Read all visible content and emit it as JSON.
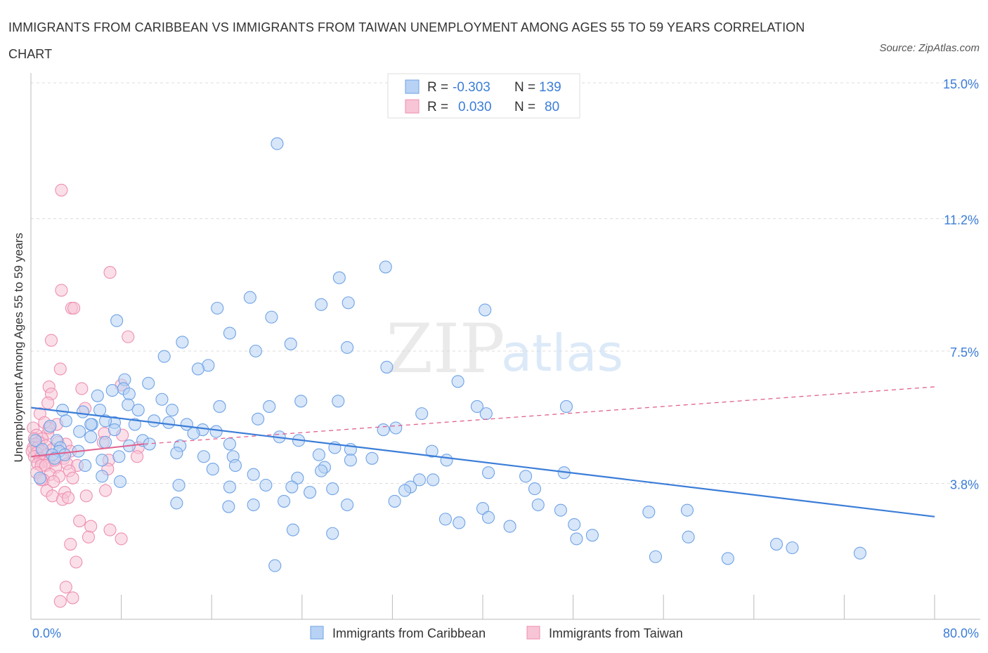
{
  "title": "IMMIGRANTS FROM CARIBBEAN VS IMMIGRANTS FROM TAIWAN UNEMPLOYMENT AMONG AGES 55 TO 59 YEARS CORRELATION CHART",
  "source": "Source: ZipAtlas.com",
  "watermark": {
    "zip": "ZIP",
    "atlas": "atlas"
  },
  "legend_box": {
    "rows": [
      {
        "r_label": "R =",
        "r_value": "-0.303",
        "n_label": "N =",
        "n_value": "139",
        "color": "#a9c8f2"
      },
      {
        "r_label": "R =",
        "r_value": "0.030",
        "n_label": "N =",
        "n_value": "80",
        "color": "#f5b8cd"
      }
    ]
  },
  "chart_data": {
    "type": "scatter",
    "xlabel": "",
    "ylabel": "Unemployment Among Ages 55 to 59 years",
    "x_ticks": [
      "0.0%",
      "80.0%"
    ],
    "y_ticks": [
      "3.8%",
      "7.5%",
      "11.2%",
      "15.0%"
    ],
    "xlim": [
      0,
      80
    ],
    "ylim": [
      0,
      15
    ],
    "grid": true,
    "legend_position": "bottom-center",
    "series": [
      {
        "name": "Immigrants from Caribbean",
        "color": "#6fa3e6",
        "fill": "#b7d2f4",
        "trend_color": "#3b7dd8",
        "trend": {
          "x0": 0,
          "y0": 5.92,
          "x1": 80,
          "y1": 2.87
        },
        "points": [
          [
            21.8,
            13.3
          ],
          [
            31.4,
            9.85
          ],
          [
            27.3,
            9.55
          ],
          [
            19.4,
            9.0
          ],
          [
            28.1,
            8.85
          ],
          [
            25.7,
            8.8
          ],
          [
            16.5,
            8.7
          ],
          [
            40.2,
            8.65
          ],
          [
            21.3,
            8.45
          ],
          [
            7.6,
            8.35
          ],
          [
            17.6,
            8.0
          ],
          [
            13.4,
            7.75
          ],
          [
            23.0,
            7.7
          ],
          [
            28.0,
            7.6
          ],
          [
            19.9,
            7.5
          ],
          [
            11.8,
            7.35
          ],
          [
            15.7,
            7.1
          ],
          [
            14.8,
            7.0
          ],
          [
            31.5,
            7.05
          ],
          [
            37.8,
            6.65
          ],
          [
            8.3,
            6.7
          ],
          [
            10.4,
            6.6
          ],
          [
            8.2,
            6.45
          ],
          [
            7.2,
            6.4
          ],
          [
            8.7,
            6.3
          ],
          [
            5.9,
            6.25
          ],
          [
            27.2,
            6.1
          ],
          [
            11.6,
            6.15
          ],
          [
            23.9,
            6.1
          ],
          [
            21.1,
            5.95
          ],
          [
            16.7,
            5.95
          ],
          [
            8.6,
            6.0
          ],
          [
            39.5,
            5.95
          ],
          [
            47.4,
            5.95
          ],
          [
            12.5,
            5.85
          ],
          [
            9.5,
            5.85
          ],
          [
            6.1,
            5.85
          ],
          [
            2.8,
            5.85
          ],
          [
            4.6,
            5.8
          ],
          [
            40.3,
            5.75
          ],
          [
            34.6,
            5.75
          ],
          [
            20.1,
            5.6
          ],
          [
            10.9,
            5.55
          ],
          [
            7.4,
            5.5
          ],
          [
            6.6,
            5.55
          ],
          [
            3.1,
            5.55
          ],
          [
            12.2,
            5.5
          ],
          [
            5.4,
            5.45
          ],
          [
            13.8,
            5.45
          ],
          [
            9.2,
            5.45
          ],
          [
            1.7,
            5.4
          ],
          [
            5.3,
            5.45
          ],
          [
            32.3,
            5.35
          ],
          [
            31.2,
            5.3
          ],
          [
            7.4,
            5.3
          ],
          [
            15.2,
            5.3
          ],
          [
            4.3,
            5.25
          ],
          [
            16.4,
            5.25
          ],
          [
            14.4,
            5.2
          ],
          [
            22.0,
            5.1
          ],
          [
            5.3,
            5.1
          ],
          [
            2.3,
            5.0
          ],
          [
            9.9,
            5.0
          ],
          [
            23.7,
            5.0
          ],
          [
            6.6,
            4.95
          ],
          [
            0.4,
            5.0
          ],
          [
            8.7,
            4.85
          ],
          [
            17.6,
            4.9
          ],
          [
            10.5,
            4.9
          ],
          [
            13.2,
            4.85
          ],
          [
            26.9,
            4.8
          ],
          [
            2.6,
            4.8
          ],
          [
            1.0,
            4.75
          ],
          [
            28.3,
            4.75
          ],
          [
            35.5,
            4.7
          ],
          [
            2.5,
            4.7
          ],
          [
            4.2,
            4.7
          ],
          [
            12.9,
            4.65
          ],
          [
            3.0,
            4.6
          ],
          [
            1.9,
            4.6
          ],
          [
            17.9,
            4.55
          ],
          [
            15.3,
            4.55
          ],
          [
            25.5,
            4.6
          ],
          [
            30.2,
            4.5
          ],
          [
            2.1,
            4.5
          ],
          [
            7.8,
            4.55
          ],
          [
            28.3,
            4.45
          ],
          [
            6.3,
            4.45
          ],
          [
            36.8,
            4.45
          ],
          [
            18.1,
            4.3
          ],
          [
            26.0,
            4.25
          ],
          [
            4.8,
            4.3
          ],
          [
            16.1,
            4.2
          ],
          [
            25.7,
            4.15
          ],
          [
            40.5,
            4.1
          ],
          [
            47.2,
            4.1
          ],
          [
            19.7,
            4.05
          ],
          [
            6.3,
            4.0
          ],
          [
            43.8,
            4.0
          ],
          [
            0.8,
            3.95
          ],
          [
            23.6,
            3.95
          ],
          [
            35.6,
            3.9
          ],
          [
            34.4,
            3.9
          ],
          [
            7.9,
            3.85
          ],
          [
            23.1,
            3.7
          ],
          [
            13.1,
            3.75
          ],
          [
            20.8,
            3.75
          ],
          [
            17.6,
            3.7
          ],
          [
            26.7,
            3.65
          ],
          [
            33.6,
            3.7
          ],
          [
            24.7,
            3.55
          ],
          [
            33.1,
            3.6
          ],
          [
            44.6,
            3.65
          ],
          [
            32.2,
            3.3
          ],
          [
            22.4,
            3.3
          ],
          [
            12.9,
            3.25
          ],
          [
            19.7,
            3.2
          ],
          [
            17.5,
            3.15
          ],
          [
            28.0,
            3.2
          ],
          [
            40.0,
            3.1
          ],
          [
            44.9,
            3.2
          ],
          [
            58.1,
            3.05
          ],
          [
            46.9,
            3.05
          ],
          [
            54.7,
            3.0
          ],
          [
            40.5,
            2.85
          ],
          [
            36.7,
            2.8
          ],
          [
            37.9,
            2.7
          ],
          [
            48.1,
            2.65
          ],
          [
            42.4,
            2.6
          ],
          [
            23.2,
            2.5
          ],
          [
            26.7,
            2.4
          ],
          [
            49.7,
            2.35
          ],
          [
            48.3,
            2.25
          ],
          [
            58.2,
            2.3
          ],
          [
            66.0,
            2.1
          ],
          [
            67.4,
            2.0
          ],
          [
            73.4,
            1.85
          ],
          [
            61.7,
            1.7
          ],
          [
            55.3,
            1.75
          ],
          [
            21.6,
            1.5
          ]
        ]
      },
      {
        "name": "Immigrants from Taiwan",
        "color": "#ee8fb2",
        "fill": "#f7c5d6",
        "trend_color": "#e0628f",
        "trend": {
          "x0": 0,
          "y0": 4.55,
          "x1": 10,
          "y1": 4.9
        },
        "trend_dashed": {
          "x0": 10,
          "y0": 4.9,
          "x1": 80,
          "y1": 6.5
        },
        "points": [
          [
            2.7,
            12.0
          ],
          [
            7.0,
            9.7
          ],
          [
            2.7,
            9.2
          ],
          [
            3.6,
            8.7
          ],
          [
            3.8,
            8.7
          ],
          [
            8.6,
            7.9
          ],
          [
            1.8,
            7.8
          ],
          [
            2.6,
            7.0
          ],
          [
            8.0,
            6.55
          ],
          [
            1.6,
            6.5
          ],
          [
            4.5,
            6.45
          ],
          [
            1.8,
            6.3
          ],
          [
            1.5,
            6.05
          ],
          [
            4.8,
            5.9
          ],
          [
            0.8,
            5.75
          ],
          [
            1.2,
            5.5
          ],
          [
            2.3,
            5.45
          ],
          [
            0.2,
            5.35
          ],
          [
            1.5,
            5.2
          ],
          [
            1.6,
            5.35
          ],
          [
            6.5,
            5.2
          ],
          [
            0.5,
            5.15
          ],
          [
            8.1,
            5.15
          ],
          [
            0.3,
            5.05
          ],
          [
            1.0,
            5.05
          ],
          [
            0.7,
            4.95
          ],
          [
            2.4,
            4.95
          ],
          [
            6.4,
            4.95
          ],
          [
            0.4,
            4.9
          ],
          [
            3.1,
            4.9
          ],
          [
            1.3,
            4.85
          ],
          [
            0.2,
            4.8
          ],
          [
            0.6,
            4.8
          ],
          [
            9.5,
            4.8
          ],
          [
            1.9,
            4.75
          ],
          [
            0.9,
            4.7
          ],
          [
            0.1,
            4.7
          ],
          [
            3.5,
            4.7
          ],
          [
            0.5,
            4.65
          ],
          [
            1.4,
            4.6
          ],
          [
            0.3,
            4.55
          ],
          [
            9.4,
            4.55
          ],
          [
            0.8,
            4.5
          ],
          [
            2.9,
            4.5
          ],
          [
            6.9,
            4.45
          ],
          [
            1.0,
            4.4
          ],
          [
            1.6,
            4.4
          ],
          [
            3.2,
            4.35
          ],
          [
            4.1,
            4.3
          ],
          [
            0.6,
            4.35
          ],
          [
            0.9,
            4.3
          ],
          [
            1.3,
            4.3
          ],
          [
            2.2,
            4.25
          ],
          [
            6.8,
            4.2
          ],
          [
            3.4,
            4.15
          ],
          [
            0.5,
            4.1
          ],
          [
            1.7,
            4.05
          ],
          [
            2.5,
            4.0
          ],
          [
            3.7,
            3.95
          ],
          [
            1.1,
            3.9
          ],
          [
            0.9,
            3.9
          ],
          [
            2.0,
            3.85
          ],
          [
            1.4,
            3.6
          ],
          [
            3.0,
            3.55
          ],
          [
            1.9,
            3.45
          ],
          [
            4.9,
            3.45
          ],
          [
            6.6,
            3.6
          ],
          [
            2.8,
            3.35
          ],
          [
            3.3,
            3.4
          ],
          [
            4.3,
            2.75
          ],
          [
            5.3,
            2.6
          ],
          [
            7.0,
            2.5
          ],
          [
            8.0,
            2.25
          ],
          [
            5.1,
            2.3
          ],
          [
            3.5,
            2.1
          ],
          [
            4.0,
            1.6
          ],
          [
            3.1,
            0.9
          ],
          [
            3.7,
            0.6
          ],
          [
            2.6,
            0.5
          ],
          [
            2.1,
            4.45
          ]
        ]
      }
    ]
  }
}
